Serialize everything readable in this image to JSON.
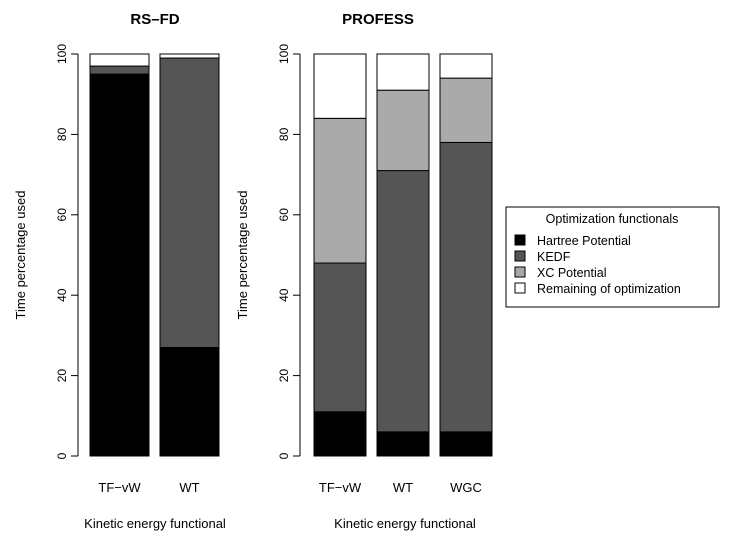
{
  "legend": {
    "title": "Optimization functionals",
    "items": [
      {
        "label": "Hartree Potential",
        "color": "#000000"
      },
      {
        "label": "KEDF",
        "color": "#555555"
      },
      {
        "label": "XC Potential",
        "color": "#aaaaaa"
      },
      {
        "label": "Remaining of optimization",
        "color": "#ffffff"
      }
    ]
  },
  "chart_data": [
    {
      "type": "bar",
      "stacked": true,
      "title": "RS–FD",
      "xlabel": "Kinetic energy functional",
      "ylabel": "Time percentage used",
      "ylim": [
        0,
        100
      ],
      "yticks": [
        "0",
        "20",
        "40",
        "60",
        "80",
        "100"
      ],
      "categories": [
        "TF−vW",
        "WT"
      ],
      "series": [
        {
          "name": "Hartree Potential",
          "values": [
            95,
            27
          ]
        },
        {
          "name": "KEDF",
          "values": [
            2,
            72
          ]
        },
        {
          "name": "XC Potential",
          "values": [
            0,
            0
          ]
        },
        {
          "name": "Remaining of optimization",
          "values": [
            3,
            1
          ]
        }
      ]
    },
    {
      "type": "bar",
      "stacked": true,
      "title": "PROFESS",
      "xlabel": "Kinetic energy functional",
      "ylabel": "Time percentage used",
      "ylim": [
        0,
        100
      ],
      "yticks": [
        "0",
        "20",
        "40",
        "60",
        "80",
        "100"
      ],
      "categories": [
        "TF−vW",
        "WT",
        "WGC"
      ],
      "series": [
        {
          "name": "Hartree Potential",
          "values": [
            11,
            6,
            6
          ]
        },
        {
          "name": "KEDF",
          "values": [
            37,
            65,
            72
          ]
        },
        {
          "name": "XC Potential",
          "values": [
            36,
            20,
            16
          ]
        },
        {
          "name": "Remaining of optimization",
          "values": [
            16,
            9,
            6
          ]
        }
      ]
    }
  ]
}
